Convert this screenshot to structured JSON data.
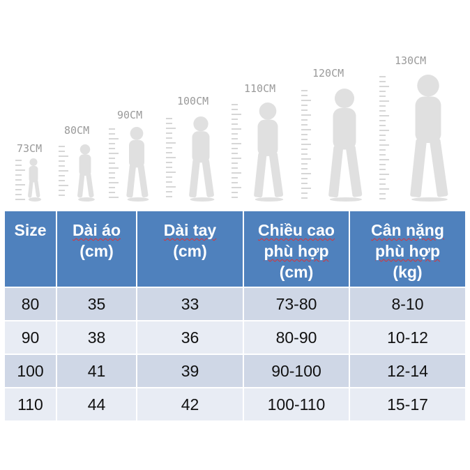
{
  "height_labels": [
    "73CM",
    "80CM",
    "90CM",
    "100CM",
    "110CM",
    "120CM",
    "130CM"
  ],
  "table": {
    "headers": [
      {
        "lines": [
          "Size"
        ]
      },
      {
        "lines": [
          "Dài áo",
          "(cm)"
        ]
      },
      {
        "lines": [
          "Dài tay",
          "(cm)"
        ]
      },
      {
        "lines": [
          "Chiều cao",
          "phù hợp",
          "(cm)"
        ]
      },
      {
        "lines": [
          "Cân nặng",
          "phù hợp",
          "(kg)"
        ]
      }
    ],
    "rows": [
      [
        "80",
        "35",
        "33",
        "73-80",
        "8-10"
      ],
      [
        "90",
        "38",
        "36",
        "80-90",
        "10-12"
      ],
      [
        "100",
        "41",
        "39",
        "90-100",
        "12-14"
      ],
      [
        "110",
        "44",
        "42",
        "100-110",
        "15-17"
      ]
    ]
  },
  "colors": {
    "header_bg": "#4f81bd",
    "row_odd": "#cfd7e6",
    "row_even": "#e8ecf4",
    "figure": "#e0e0e0"
  }
}
